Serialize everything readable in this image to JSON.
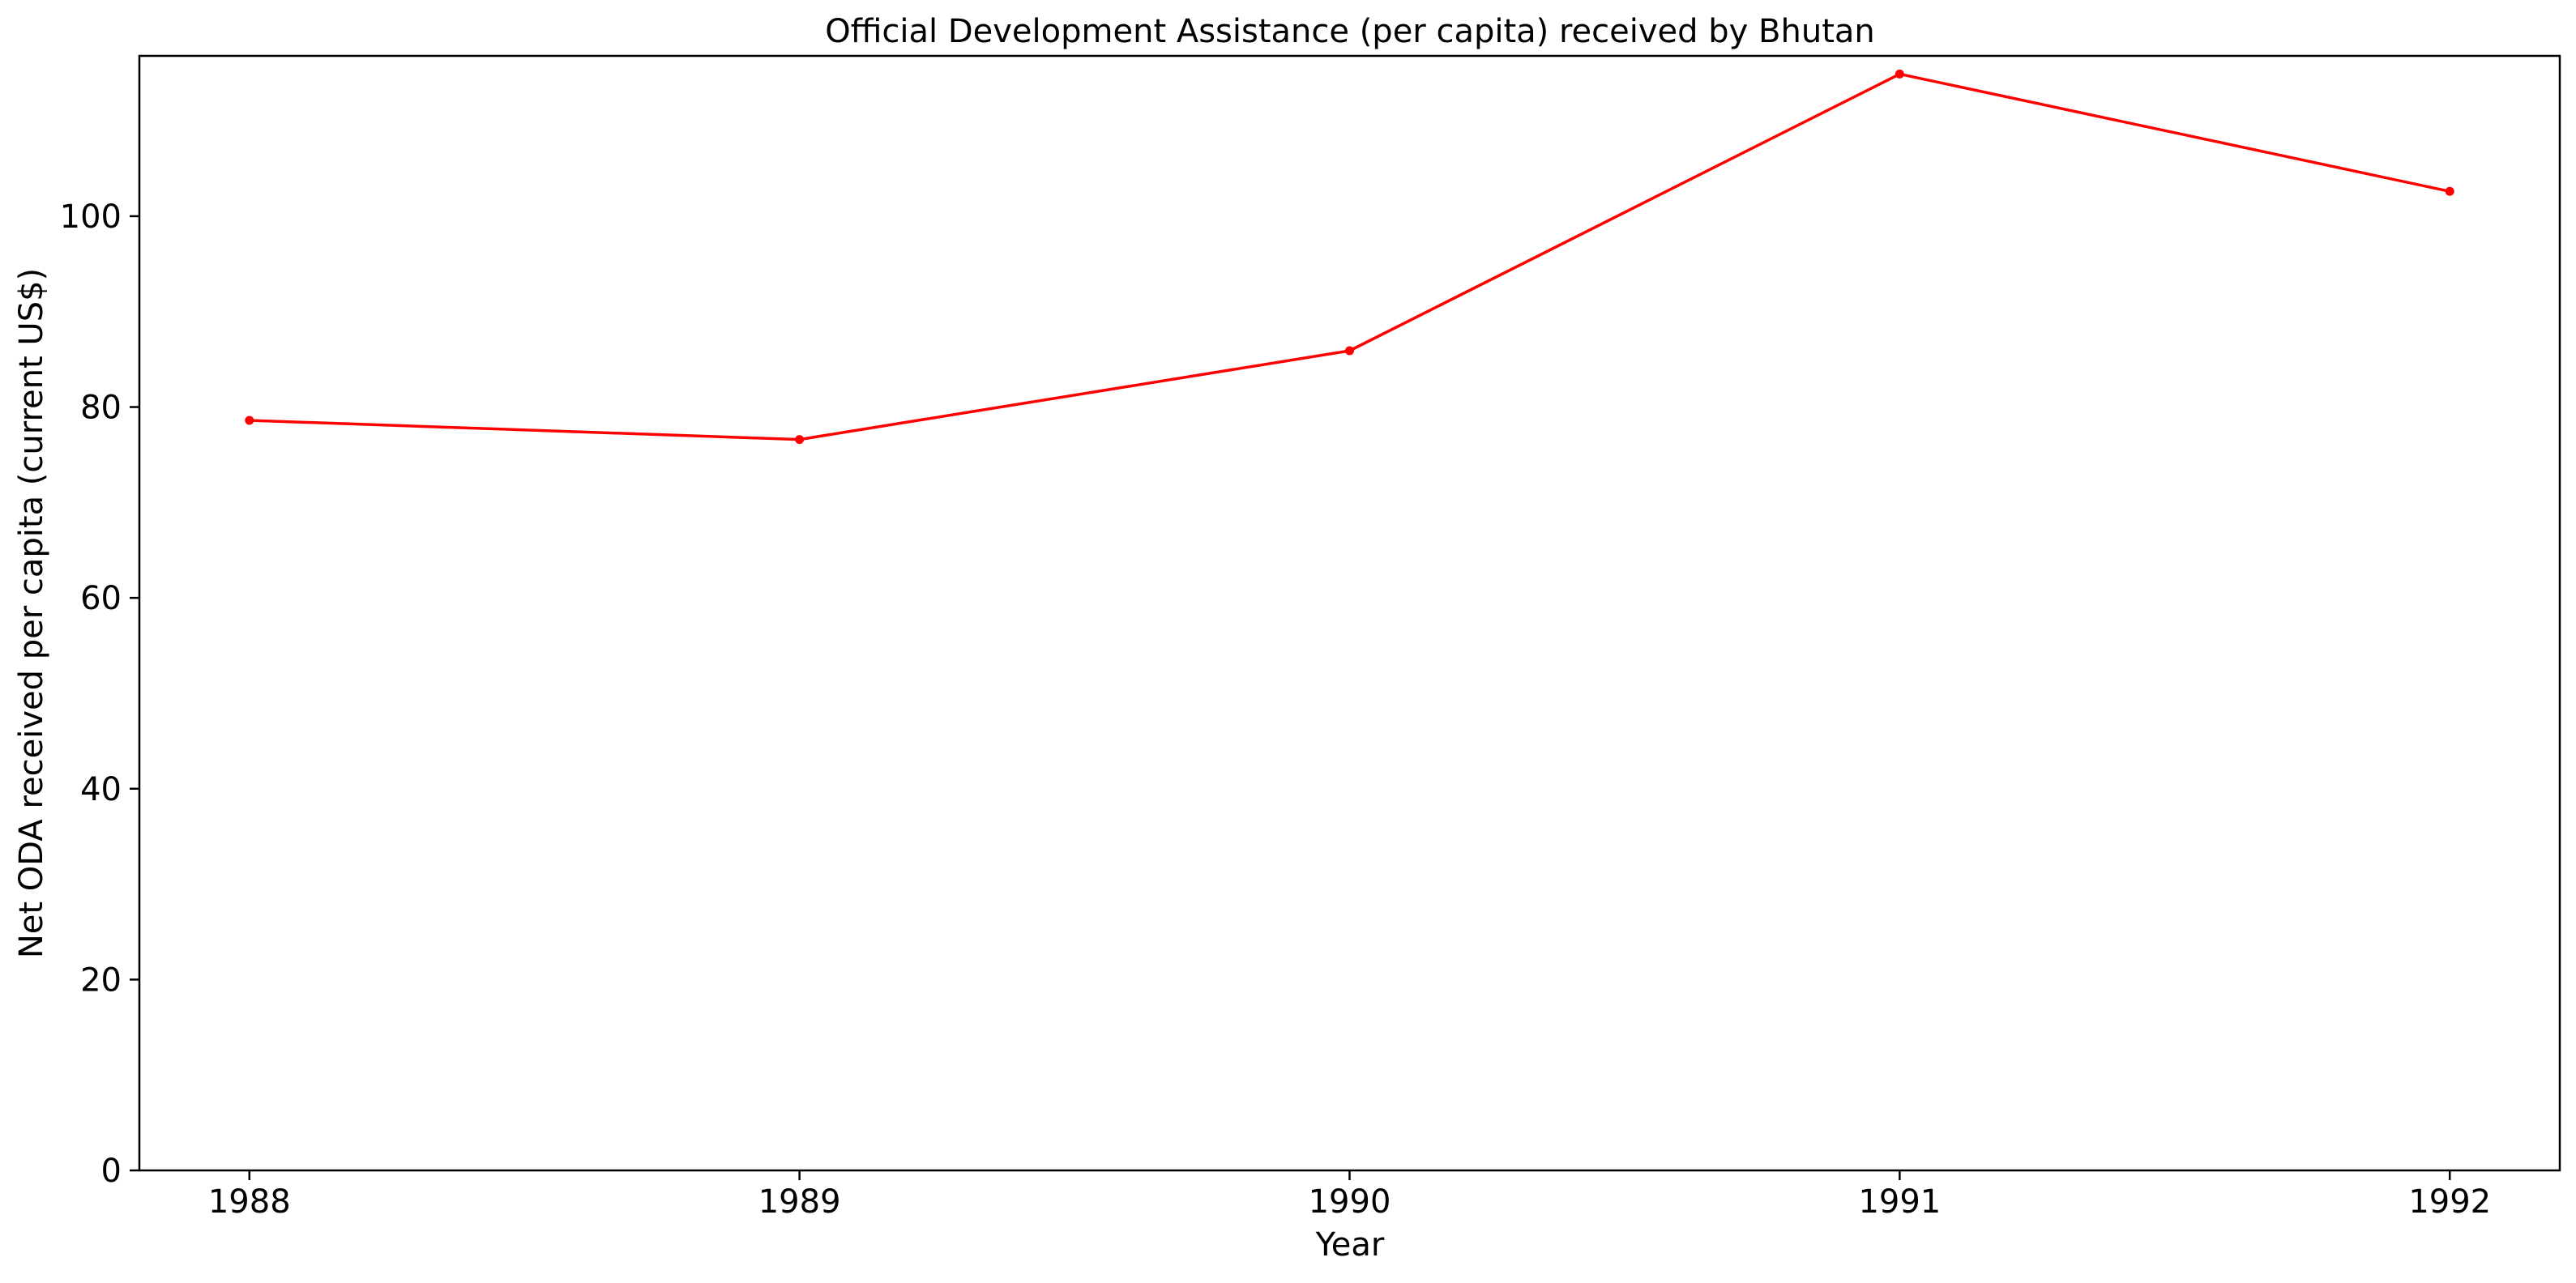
{
  "chart_data": {
    "type": "line",
    "title": "Official Development Assistance (per capita) received by Bhutan",
    "xlabel": "Year",
    "ylabel": "Net ODA received per capita (current US$)",
    "x": [
      1988,
      1989,
      1990,
      1991,
      1992
    ],
    "x_tick_labels": [
      "1988",
      "1989",
      "1990",
      "1991",
      "1992"
    ],
    "y_ticks": [
      0,
      20,
      40,
      60,
      80,
      100
    ],
    "y_tick_labels": [
      "0",
      "20",
      "40",
      "60",
      "80",
      "100"
    ],
    "ylim": [
      0,
      116.8
    ],
    "xlim": [
      1987.8,
      1992.2
    ],
    "grid": false,
    "series": [
      {
        "color": "#ff0000",
        "marker": "circle",
        "values": [
          78.6,
          76.6,
          85.9,
          114.9,
          102.6
        ]
      }
    ]
  }
}
